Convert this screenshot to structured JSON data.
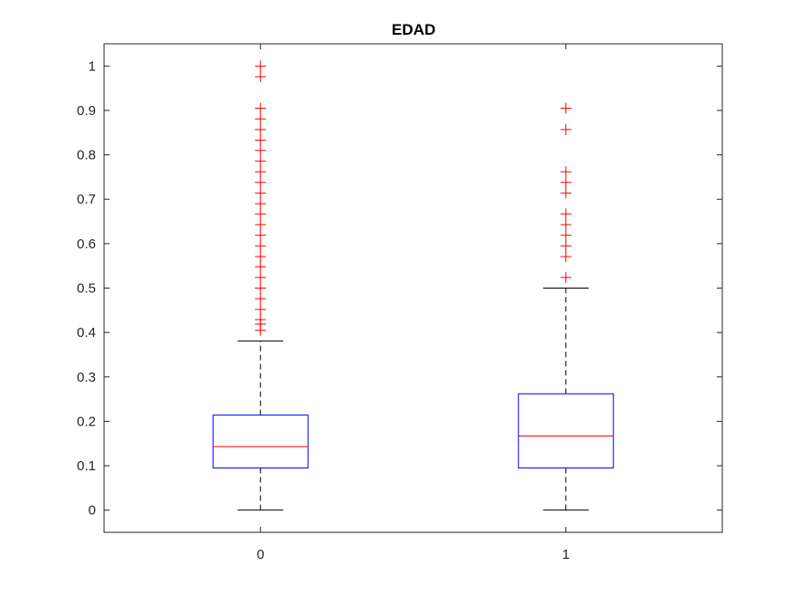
{
  "chart_data": {
    "type": "boxplot",
    "title": "EDAD",
    "xlabel": "",
    "ylabel": "",
    "categories": [
      "0",
      "1"
    ],
    "ylim": [
      -0.05,
      1.05
    ],
    "yticks": [
      "0",
      "0.1",
      "0.2",
      "0.3",
      "0.4",
      "0.5",
      "0.6",
      "0.7",
      "0.8",
      "0.9",
      "1"
    ],
    "grid": false,
    "boxes": [
      {
        "category": "0",
        "whisker_low": 0.0,
        "q1": 0.095,
        "median": 0.143,
        "q3": 0.214,
        "whisker_high": 0.381,
        "outliers": [
          0.405,
          0.419,
          0.429,
          0.452,
          0.476,
          0.5,
          0.524,
          0.548,
          0.571,
          0.595,
          0.619,
          0.643,
          0.667,
          0.69,
          0.714,
          0.738,
          0.762,
          0.786,
          0.81,
          0.833,
          0.857,
          0.881,
          0.905,
          0.976,
          1.0
        ]
      },
      {
        "category": "1",
        "whisker_low": 0.0,
        "q1": 0.095,
        "median": 0.167,
        "q3": 0.262,
        "whisker_high": 0.5,
        "outliers": [
          0.524,
          0.571,
          0.595,
          0.619,
          0.643,
          0.667,
          0.714,
          0.738,
          0.762,
          0.857,
          0.905
        ]
      }
    ],
    "colors": {
      "box": "#0000ff",
      "median": "#ff0000",
      "whisker": "#000000",
      "outlier": "#ff0000",
      "axis": "#262626"
    }
  }
}
